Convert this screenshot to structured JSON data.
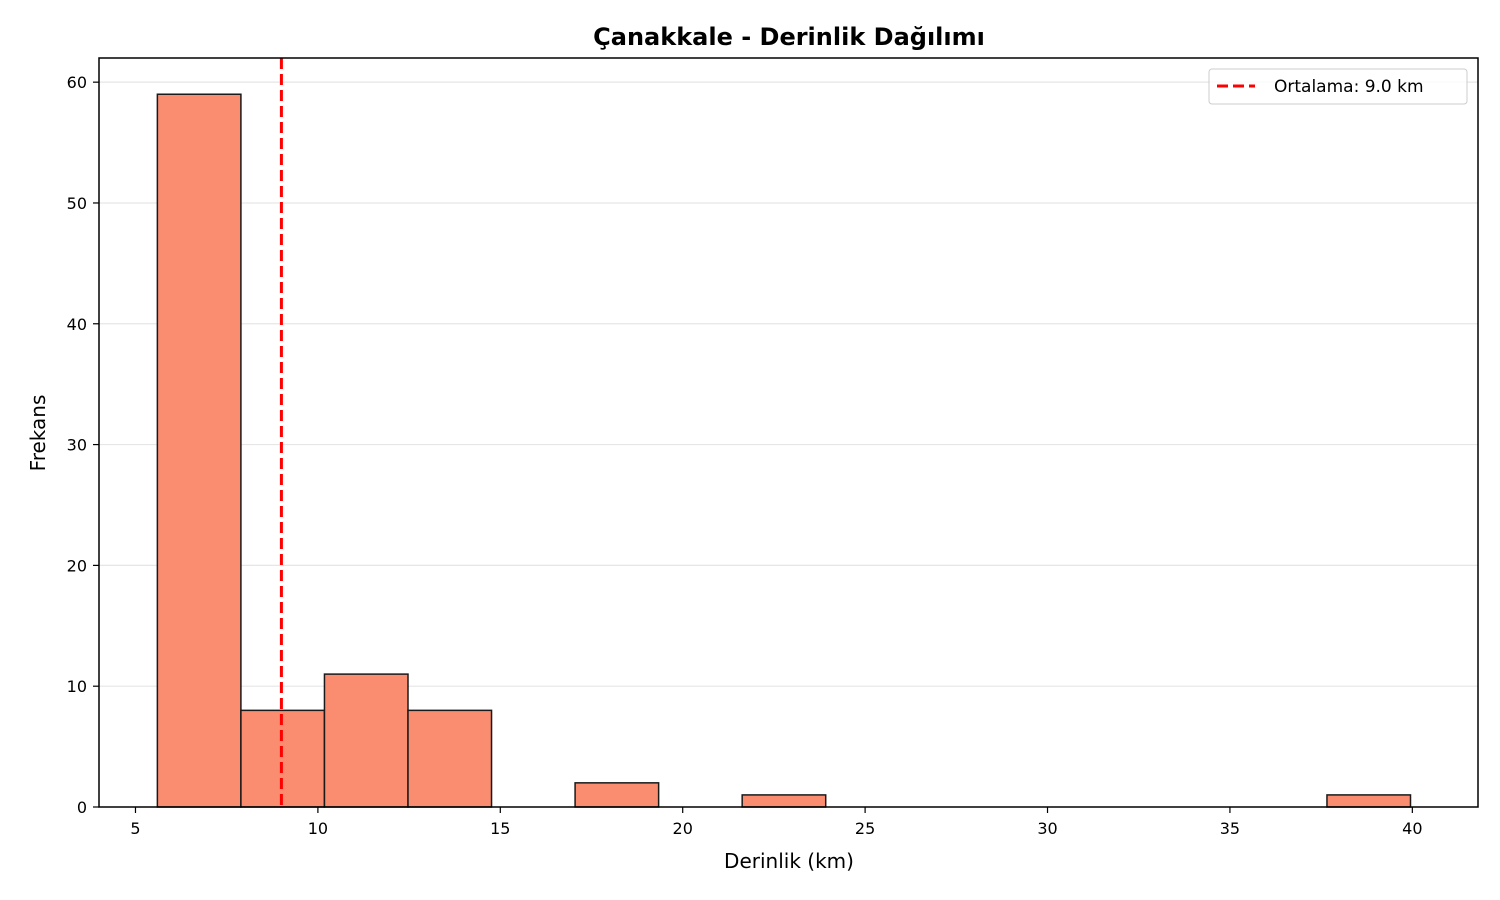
{
  "chart_data": {
    "type": "bar",
    "title": "Çanakkale - Derinlik Dağılımı",
    "xlabel": "Derinlik (km)",
    "ylabel": "Frekans",
    "xlim": [
      4,
      41.8
    ],
    "ylim": [
      0,
      62
    ],
    "xticks": [
      5,
      10,
      15,
      20,
      25,
      30,
      35,
      40
    ],
    "yticks": [
      0,
      10,
      20,
      30,
      40,
      50,
      60
    ],
    "grid": "y",
    "bins": [
      {
        "x0": 5.6,
        "x1": 7.89,
        "count": 59
      },
      {
        "x0": 7.89,
        "x1": 10.18,
        "count": 8
      },
      {
        "x0": 10.18,
        "x1": 12.47,
        "count": 11
      },
      {
        "x0": 12.47,
        "x1": 14.76,
        "count": 8
      },
      {
        "x0": 14.76,
        "x1": 17.05,
        "count": 0
      },
      {
        "x0": 17.05,
        "x1": 19.34,
        "count": 2
      },
      {
        "x0": 19.34,
        "x1": 21.63,
        "count": 0
      },
      {
        "x0": 21.63,
        "x1": 23.92,
        "count": 1
      },
      {
        "x0": 23.92,
        "x1": 26.21,
        "count": 0
      },
      {
        "x0": 26.21,
        "x1": 28.5,
        "count": 0
      },
      {
        "x0": 28.5,
        "x1": 30.79,
        "count": 0
      },
      {
        "x0": 30.79,
        "x1": 33.08,
        "count": 0
      },
      {
        "x0": 33.08,
        "x1": 35.37,
        "count": 0
      },
      {
        "x0": 35.37,
        "x1": 37.66,
        "count": 0
      },
      {
        "x0": 37.66,
        "x1": 39.95,
        "count": 1
      }
    ],
    "mean_line": {
      "value": 9.0,
      "label": "Ortalama: 9.0 km",
      "color": "#ff0000"
    },
    "bar_color": "#fa8c70",
    "bar_edge_color": "#1a1a1a",
    "legend_position": "top-right"
  }
}
